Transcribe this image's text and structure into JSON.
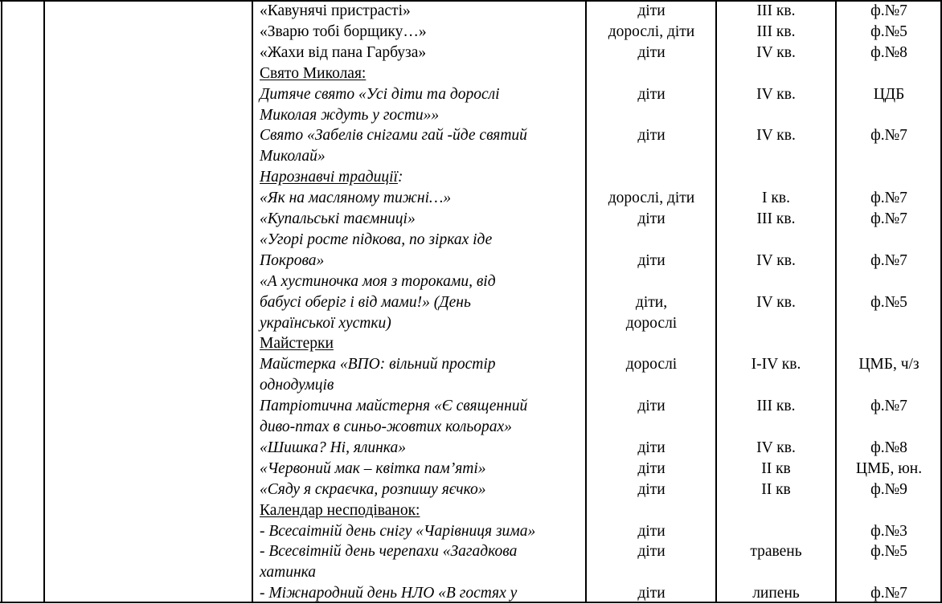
{
  "lines": [
    {
      "text": "«Кавунячі пристрасті»",
      "style": "normal",
      "audience": "діти",
      "period": "III кв.",
      "place": "ф.№7"
    },
    {
      "text": "«Зварю тобі борщику…»",
      "style": "normal",
      "audience": "дорослі, діти",
      "period": "III кв.",
      "place": "ф.№5"
    },
    {
      "text": "«Жахи від пана Гарбуза»",
      "style": "normal",
      "audience": "діти",
      "period": "IV кв.",
      "place": "ф.№8"
    },
    {
      "text": "Свято Миколая:",
      "style": "underline"
    },
    {
      "text": "Дитяче свято «Усі діти та дорослі",
      "style": "italic",
      "audience": "діти",
      "period": "IV кв.",
      "place": "ЦДБ"
    },
    {
      "text": "Миколая ждуть у гости»»",
      "style": "italic"
    },
    {
      "text": "Свято «Забелів снігами гай -йде святий",
      "style": "italic",
      "audience": "діти",
      "period": "IV кв.",
      "place": "ф.№7"
    },
    {
      "text": "Миколай»",
      "style": "italic"
    },
    {
      "text": "Нарознавчі традиції",
      "suffix": ":",
      "style": "italic underline"
    },
    {
      "text": "«Як на масляному тижні…»",
      "style": "italic",
      "audience": "дорослі, діти",
      "period": "I кв.",
      "place": "ф.№7"
    },
    {
      "text": "«Купальські таємниці»",
      "style": "italic",
      "audience": "діти",
      "period": "III кв.",
      "place": "ф.№7"
    },
    {
      "text": "«Угорі росте підкова, по зірках іде",
      "style": "italic"
    },
    {
      "text": "Покрова»",
      "style": "italic",
      "audience": "діти",
      "period": "IV кв.",
      "place": "ф.№7"
    },
    {
      "text": "«А хустиночка моя з тороками, від",
      "style": "italic"
    },
    {
      "text": "бабусі оберіг і від мами!» (День",
      "style": "italic",
      "audience": "діти,",
      "period": "IV кв.",
      "place": "ф.№5"
    },
    {
      "text": "української хустки)",
      "style": "italic",
      "audience": "дорослі"
    },
    {
      "text": "Майстерки",
      "style": "underline"
    },
    {
      "text": "Майстерка «ВПО: вільний простір",
      "style": "italic",
      "audience": "дорослі",
      "period": "I-IV кв.",
      "place": "ЦМБ, ч/з"
    },
    {
      "text": "однодумців",
      "style": "italic"
    },
    {
      "text": "Патріотична майстерня «Є священний",
      "style": "italic",
      "audience": "діти",
      "period": "III кв.",
      "place": "ф.№7"
    },
    {
      "text": "диво-птах в синьо-жовтих кольорах»",
      "style": "italic"
    },
    {
      "text": "«Шишка? Ні, ялинка»",
      "style": "italic",
      "audience": "діти",
      "period": "IV кв.",
      "place": "ф.№8"
    },
    {
      "text": "«Червоний мак – квітка пам’яті»",
      "style": "italic",
      "audience": "діти",
      "period": "II кв",
      "place": "ЦМБ, юн."
    },
    {
      "text": "«Сяду я скраєчка, розпишу яєчко»",
      "style": "italic",
      "audience": "діти",
      "period": "II кв",
      "place": "ф.№9"
    },
    {
      "text": "Календар несподіванок:",
      "style": "underline"
    },
    {
      "prefix": "- ",
      "text": "Всесаітній день снігу «Чарівниця зима»",
      "style": "italic",
      "audience": "діти",
      "place": "ф.№3"
    },
    {
      "prefix": "- ",
      "text": "Всесвітній день черепахи «Загадкова",
      "style": "italic",
      "audience": "діти",
      "period": "травень",
      "place": "ф.№5"
    },
    {
      "text": "хатинка",
      "style": "italic"
    },
    {
      "prefix": "- ",
      "text": "Міжнародний день НЛО «В гостях у",
      "style": "italic",
      "audience": "діти",
      "period": "липень",
      "place": "ф.№7"
    }
  ]
}
